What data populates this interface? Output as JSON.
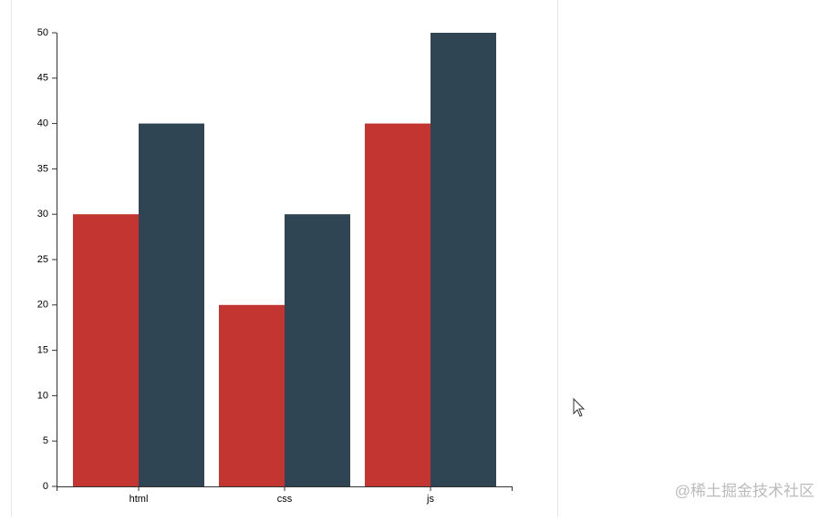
{
  "chart_data": {
    "type": "bar",
    "categories": [
      "html",
      "css",
      "js"
    ],
    "series": [
      {
        "color": "#c23531",
        "values": [
          30,
          20,
          40
        ]
      },
      {
        "color": "#2f4554",
        "values": [
          40,
          30,
          50
        ]
      }
    ],
    "ylim": [
      0,
      50
    ],
    "yticks": [
      0,
      5,
      10,
      15,
      20,
      25,
      30,
      35,
      40,
      45,
      50
    ]
  },
  "watermark": "@稀土掘金技术社区"
}
